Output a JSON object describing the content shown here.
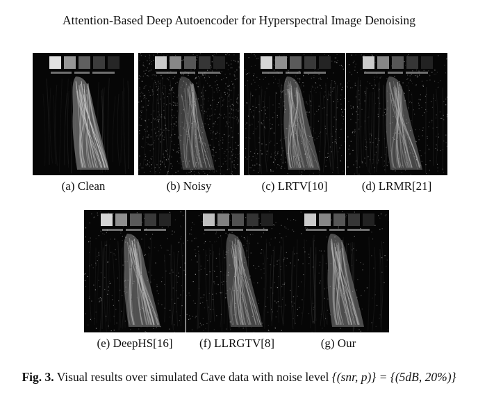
{
  "page_title": "Attention-Based Deep Autoencoder for Hyperspectral Image Denoising",
  "panels": [
    {
      "caption": "(a) Clean",
      "noise": 0.0,
      "brightness": 1.0,
      "clarity": 1.0
    },
    {
      "caption": "(b) Noisy",
      "noise": 0.95,
      "brightness": 0.9,
      "clarity": 0.35
    },
    {
      "caption": "(c) LRTV[10]",
      "noise": 0.55,
      "brightness": 0.95,
      "clarity": 0.6
    },
    {
      "caption": "(d) LRMR[21]",
      "noise": 0.45,
      "brightness": 0.9,
      "clarity": 0.65
    },
    {
      "caption": "(e) DeepHS[16]",
      "noise": 0.3,
      "brightness": 0.95,
      "clarity": 0.8
    },
    {
      "caption": "(f) LLRGTV[8]",
      "noise": 0.35,
      "brightness": 0.85,
      "clarity": 0.75
    },
    {
      "caption": "(g) Our",
      "noise": 0.18,
      "brightness": 0.9,
      "clarity": 0.85
    }
  ],
  "figure_caption": {
    "label": "Fig. 3.",
    "text": "Visual results over simulated Cave data with noise level",
    "math": "{(snr, p)} = {(5dB, 20%)}"
  },
  "colors": {
    "background": "#ffffff",
    "text": "#111111",
    "image_bg": "#060606"
  }
}
